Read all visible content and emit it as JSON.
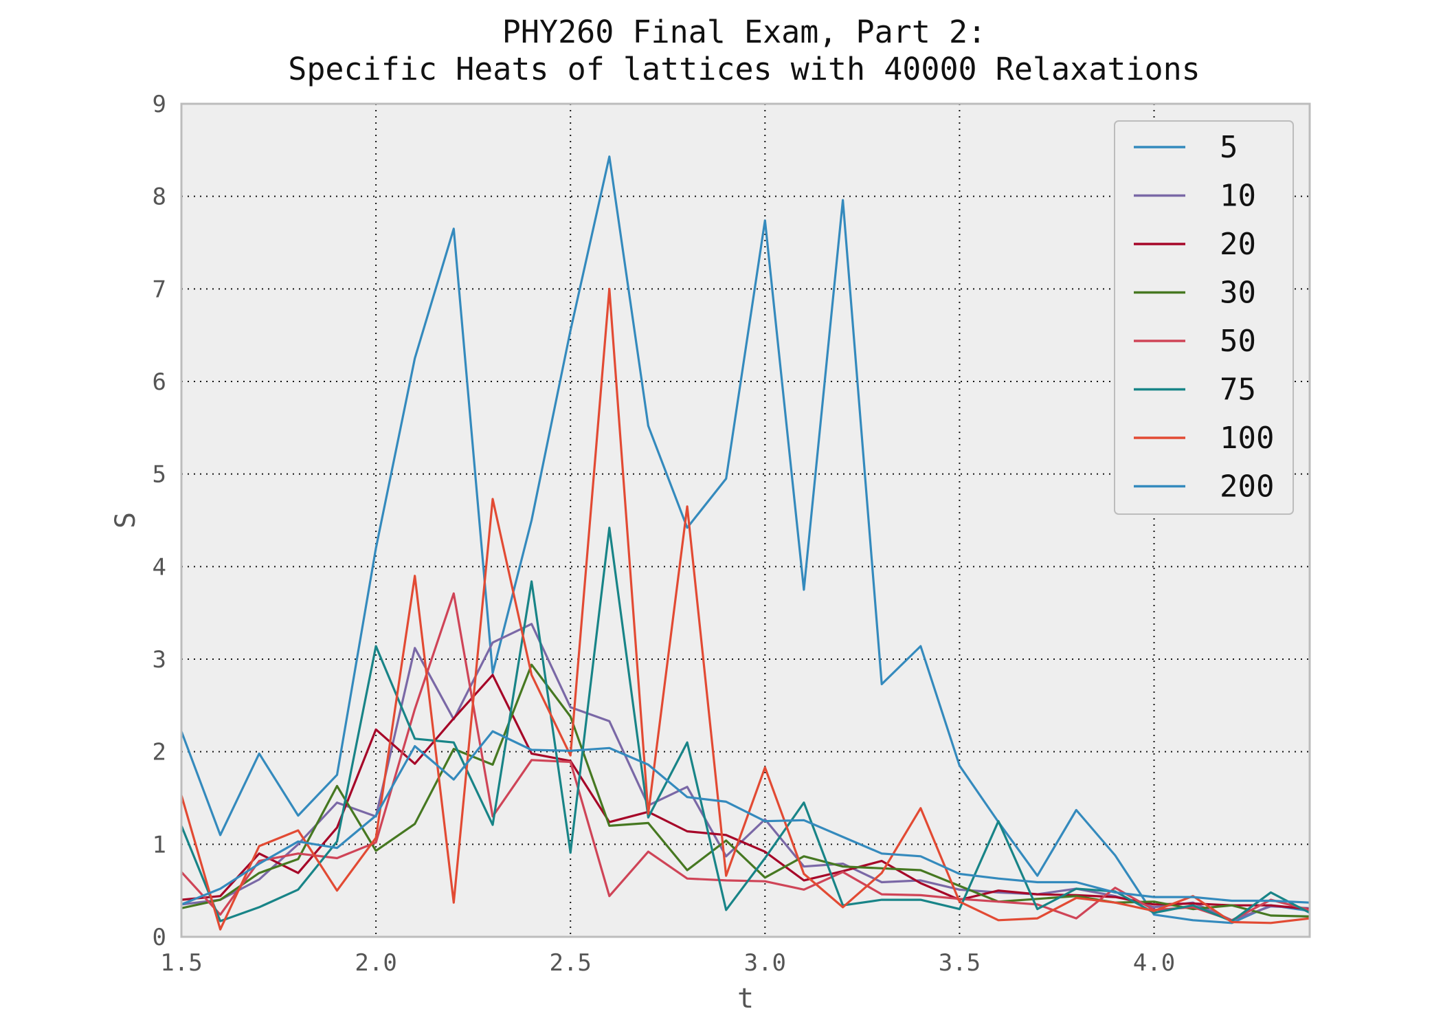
{
  "chart_data": {
    "type": "line",
    "title": "PHY260 Final Exam, Part 2:",
    "subtitle": "Specific Heats of lattices with 40000 Relaxations",
    "xlabel": "t",
    "ylabel": "S",
    "xlim": [
      1.5,
      4.4
    ],
    "ylim": [
      0,
      9
    ],
    "xticks": [
      "1.5",
      "2.0",
      "2.5",
      "3.0",
      "3.5",
      "4.0"
    ],
    "yticks": [
      "0",
      "1",
      "2",
      "3",
      "4",
      "5",
      "6",
      "7",
      "8",
      "9"
    ],
    "grid": true,
    "legend_position": "top-right",
    "x": [
      1.5,
      1.6,
      1.7,
      1.8,
      1.9,
      2.0,
      2.1,
      2.2,
      2.3,
      2.4,
      2.5,
      2.6,
      2.7,
      2.8,
      2.9,
      3.0,
      3.1,
      3.2,
      3.3,
      3.4,
      3.5,
      3.6,
      3.7,
      3.8,
      3.9,
      4.0,
      4.1,
      4.2,
      4.3,
      4.4
    ],
    "series": [
      {
        "name": "5",
        "color": "#348ABD",
        "values": [
          2.22,
          1.1,
          1.98,
          1.31,
          1.75,
          4.2,
          6.25,
          7.65,
          2.85,
          4.5,
          6.55,
          8.43,
          5.52,
          4.42,
          4.95,
          7.74,
          3.75,
          7.96,
          2.73,
          3.14,
          1.85,
          1.24,
          0.66,
          1.37,
          0.88,
          0.24,
          0.18,
          0.15,
          0.34,
          0.28
        ]
      },
      {
        "name": "10",
        "color": "#7A68A6",
        "values": [
          0.35,
          0.4,
          0.62,
          1.0,
          1.45,
          1.3,
          3.12,
          2.35,
          3.18,
          3.38,
          2.48,
          2.33,
          1.42,
          1.62,
          0.87,
          1.27,
          0.76,
          0.79,
          0.59,
          0.61,
          0.51,
          0.48,
          0.46,
          0.52,
          0.44,
          0.32,
          0.37,
          0.18,
          0.33,
          0.31
        ]
      },
      {
        "name": "20",
        "color": "#A60628",
        "values": [
          0.4,
          0.44,
          0.9,
          0.69,
          1.18,
          2.24,
          1.87,
          2.36,
          2.83,
          1.98,
          1.9,
          1.24,
          1.35,
          1.14,
          1.1,
          0.92,
          0.61,
          0.71,
          0.82,
          0.58,
          0.4,
          0.5,
          0.46,
          0.45,
          0.43,
          0.35,
          0.36,
          0.34,
          0.34,
          0.3
        ]
      },
      {
        "name": "30",
        "color": "#467821",
        "values": [
          0.31,
          0.4,
          0.69,
          0.84,
          1.63,
          0.93,
          1.22,
          2.03,
          1.86,
          2.94,
          2.38,
          1.2,
          1.23,
          0.72,
          1.04,
          0.64,
          0.87,
          0.76,
          0.74,
          0.72,
          0.55,
          0.38,
          0.41,
          0.44,
          0.37,
          0.38,
          0.3,
          0.34,
          0.23,
          0.22
        ]
      },
      {
        "name": "50",
        "color": "#CF4457",
        "values": [
          0.7,
          0.24,
          0.82,
          0.9,
          0.85,
          1.02,
          2.46,
          3.71,
          1.3,
          1.91,
          1.89,
          0.44,
          0.92,
          0.63,
          0.61,
          0.6,
          0.51,
          0.7,
          0.46,
          0.45,
          0.41,
          0.38,
          0.35,
          0.2,
          0.53,
          0.29,
          0.32,
          0.18,
          0.4,
          0.29
        ]
      },
      {
        "name": "75",
        "color": "#188487",
        "values": [
          1.2,
          0.17,
          0.32,
          0.51,
          1.03,
          3.14,
          2.14,
          2.1,
          1.21,
          3.84,
          0.91,
          4.42,
          1.29,
          2.1,
          0.29,
          0.85,
          1.45,
          0.34,
          0.4,
          0.4,
          0.3,
          1.25,
          0.3,
          0.52,
          0.49,
          0.26,
          0.34,
          0.17,
          0.48,
          0.26
        ]
      },
      {
        "name": "100",
        "color": "#E24A33",
        "values": [
          1.53,
          0.08,
          0.98,
          1.15,
          0.5,
          1.07,
          3.9,
          0.37,
          4.73,
          2.83,
          1.96,
          7.0,
          1.33,
          4.65,
          0.66,
          1.83,
          0.68,
          0.32,
          0.69,
          1.39,
          0.38,
          0.18,
          0.2,
          0.42,
          0.37,
          0.28,
          0.44,
          0.16,
          0.15,
          0.2
        ]
      },
      {
        "name": "200",
        "color": "#348ABD",
        "values": [
          0.35,
          0.52,
          0.79,
          1.03,
          0.96,
          1.31,
          2.06,
          1.7,
          2.22,
          2.02,
          2.01,
          2.04,
          1.86,
          1.51,
          1.46,
          1.25,
          1.26,
          1.08,
          0.9,
          0.87,
          0.68,
          0.63,
          0.59,
          0.59,
          0.48,
          0.43,
          0.43,
          0.39,
          0.39,
          0.37
        ]
      }
    ]
  }
}
